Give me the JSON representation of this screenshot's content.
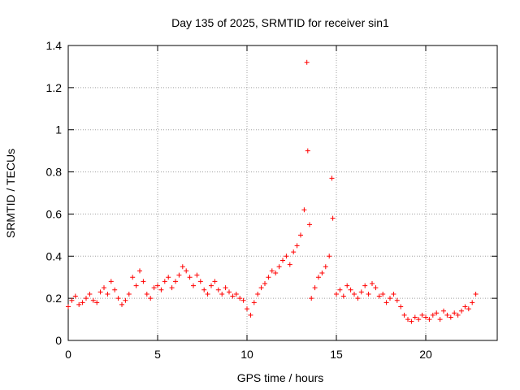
{
  "chart_data": {
    "type": "scatter",
    "title": "Day 135 of 2025, SRMTID for receiver sin1",
    "xlabel": "GPS time / hours",
    "ylabel": "SRMTID / TECUs",
    "xlim": [
      0,
      24
    ],
    "ylim": [
      0,
      1.4
    ],
    "xticks": [
      0,
      5,
      10,
      15,
      20
    ],
    "yticks": [
      0,
      0.2,
      0.4,
      0.6,
      0.8,
      1,
      1.2,
      1.4
    ],
    "xtick_labels": [
      "0",
      "5",
      "10",
      "15",
      "20"
    ],
    "ytick_labels": [
      "0",
      "0.2",
      "0.4",
      "0.6",
      "0.8",
      "1",
      "1.2",
      "1.4"
    ],
    "grid": true,
    "marker": "+",
    "color": "#ff0000",
    "series": [
      {
        "name": "SRMTID",
        "x": [
          0.0,
          0.2,
          0.4,
          0.6,
          0.8,
          1.0,
          1.2,
          1.4,
          1.6,
          1.8,
          2.0,
          2.2,
          2.4,
          2.6,
          2.8,
          3.0,
          3.2,
          3.4,
          3.6,
          3.8,
          4.0,
          4.2,
          4.4,
          4.6,
          4.8,
          5.0,
          5.2,
          5.4,
          5.6,
          5.8,
          6.0,
          6.2,
          6.4,
          6.6,
          6.8,
          7.0,
          7.2,
          7.4,
          7.6,
          7.8,
          8.0,
          8.2,
          8.4,
          8.6,
          8.8,
          9.0,
          9.2,
          9.4,
          9.6,
          9.8,
          10.0,
          10.2,
          10.4,
          10.6,
          10.8,
          11.0,
          11.2,
          11.4,
          11.6,
          11.8,
          12.0,
          12.2,
          12.4,
          12.6,
          12.8,
          13.0,
          13.2,
          13.35,
          13.4,
          13.5,
          13.6,
          13.8,
          14.0,
          14.2,
          14.4,
          14.6,
          14.75,
          14.8,
          15.0,
          15.2,
          15.4,
          15.6,
          15.8,
          16.0,
          16.2,
          16.4,
          16.6,
          16.8,
          17.0,
          17.2,
          17.4,
          17.6,
          17.8,
          18.0,
          18.2,
          18.4,
          18.6,
          18.8,
          19.0,
          19.2,
          19.4,
          19.6,
          19.8,
          20.0,
          20.2,
          20.4,
          20.6,
          20.8,
          21.0,
          21.2,
          21.4,
          21.6,
          21.8,
          22.0,
          22.2,
          22.4,
          22.6,
          22.8
        ],
        "y": [
          0.16,
          0.19,
          0.21,
          0.17,
          0.18,
          0.2,
          0.22,
          0.19,
          0.18,
          0.23,
          0.25,
          0.22,
          0.28,
          0.24,
          0.2,
          0.17,
          0.19,
          0.22,
          0.3,
          0.26,
          0.33,
          0.28,
          0.22,
          0.2,
          0.25,
          0.26,
          0.24,
          0.28,
          0.3,
          0.25,
          0.28,
          0.31,
          0.35,
          0.33,
          0.3,
          0.26,
          0.31,
          0.28,
          0.24,
          0.22,
          0.26,
          0.28,
          0.24,
          0.22,
          0.25,
          0.23,
          0.21,
          0.22,
          0.2,
          0.19,
          0.15,
          0.12,
          0.18,
          0.22,
          0.25,
          0.27,
          0.3,
          0.33,
          0.32,
          0.35,
          0.38,
          0.4,
          0.36,
          0.42,
          0.45,
          0.5,
          0.62,
          1.32,
          0.9,
          0.55,
          0.2,
          0.25,
          0.3,
          0.32,
          0.35,
          0.4,
          0.77,
          0.58,
          0.22,
          0.24,
          0.21,
          0.26,
          0.24,
          0.22,
          0.2,
          0.23,
          0.26,
          0.22,
          0.27,
          0.25,
          0.21,
          0.22,
          0.18,
          0.2,
          0.22,
          0.19,
          0.16,
          0.12,
          0.1,
          0.09,
          0.11,
          0.1,
          0.12,
          0.11,
          0.1,
          0.12,
          0.13,
          0.1,
          0.14,
          0.12,
          0.11,
          0.13,
          0.12,
          0.14,
          0.16,
          0.15,
          0.18,
          0.22
        ]
      }
    ]
  }
}
